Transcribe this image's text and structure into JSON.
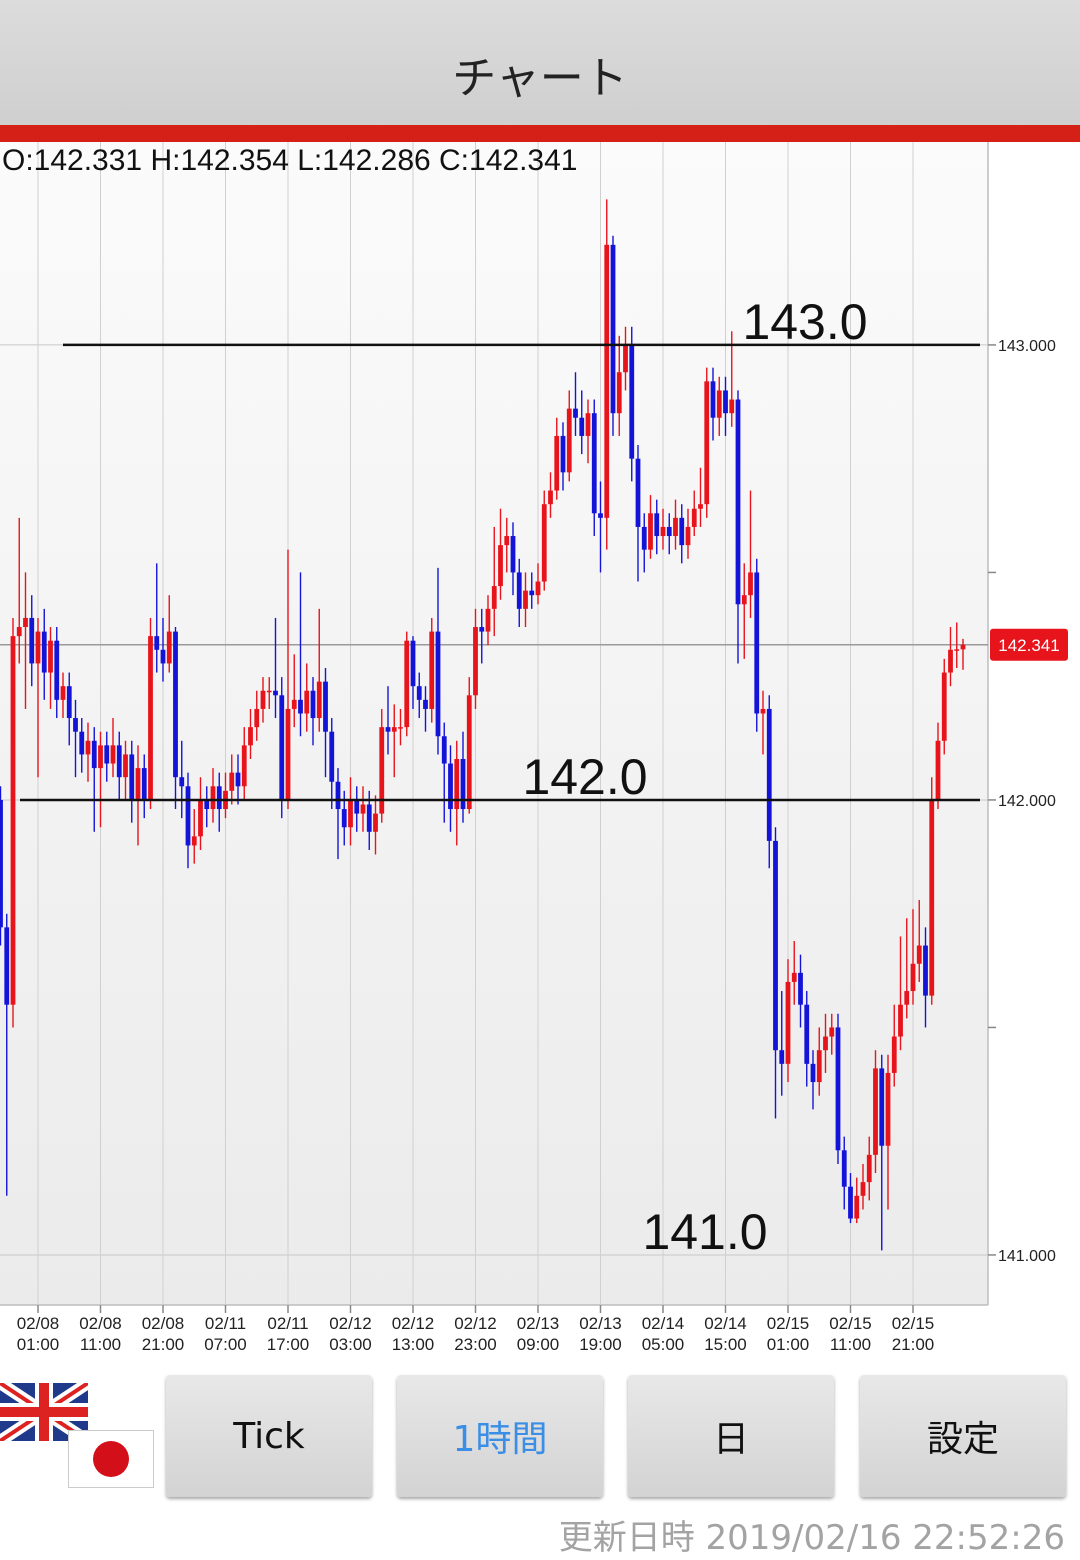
{
  "header": {
    "title": "チャート"
  },
  "ohlc_text": "O:142.331 H:142.354 L:142.286 C:142.341",
  "chart_data": {
    "type": "candlestick",
    "categories": [
      null,
      null,
      null,
      null,
      null,
      null,
      "02/08\n01:00",
      null,
      null,
      null,
      null,
      null,
      null,
      null,
      null,
      null,
      "02/08\n11:00",
      null,
      null,
      null,
      null,
      null,
      null,
      null,
      null,
      null,
      "02/08\n21:00",
      null,
      null,
      null,
      null,
      null,
      null,
      null,
      null,
      null,
      "02/11\n07:00",
      null,
      null,
      null,
      null,
      null,
      null,
      null,
      null,
      null,
      "02/11\n17:00",
      null,
      null,
      null,
      null,
      null,
      null,
      null,
      null,
      null,
      "02/12\n03:00",
      null,
      null,
      null,
      null,
      null,
      null,
      null,
      null,
      null,
      "02/12\n13:00",
      null,
      null,
      null,
      null,
      null,
      null,
      null,
      null,
      null,
      "02/12\n23:00",
      null,
      null,
      null,
      null,
      null,
      null,
      null,
      null,
      null,
      "02/13\n09:00",
      null,
      null,
      null,
      null,
      null,
      null,
      null,
      null,
      null,
      "02/13\n19:00",
      null,
      null,
      null,
      null,
      null,
      null,
      null,
      null,
      null,
      "02/14\n05:00",
      null,
      null,
      null,
      null,
      null,
      null,
      null,
      null,
      null,
      "02/14\n15:00",
      null,
      null,
      null,
      null,
      null,
      null,
      null,
      null,
      null,
      "02/15\n01:00",
      null,
      null,
      null,
      null,
      null,
      null,
      null,
      null,
      null,
      "02/15\n11:00",
      null,
      null,
      null,
      null,
      null,
      null,
      null,
      null,
      null,
      "02/15\n21:00",
      null,
      null,
      null,
      null,
      null,
      null,
      null,
      null
    ],
    "open": [
      142.0,
      141.72,
      141.55,
      142.36,
      142.38,
      142.4,
      142.3,
      142.37,
      142.28,
      142.35,
      142.22,
      142.25,
      142.18,
      142.15,
      142.1,
      142.13,
      142.07,
      142.12,
      142.08,
      142.12,
      142.05,
      142.1,
      142.0,
      142.07,
      142.0,
      142.36,
      142.33,
      142.3,
      142.37,
      142.05,
      142.03,
      141.9,
      141.92,
      142.0,
      141.98,
      142.03,
      141.98,
      142.02,
      142.06,
      142.03,
      142.12,
      142.16,
      142.2,
      142.24,
      142.24,
      142.23,
      142.0,
      142.2,
      142.22,
      142.19,
      142.24,
      142.18,
      142.26,
      142.15,
      142.04,
      141.98,
      141.94,
      142.0,
      141.97,
      141.99,
      141.93,
      141.97,
      142.16,
      142.15,
      142.16,
      142.16,
      142.35,
      142.25,
      142.22,
      142.2,
      142.37,
      142.14,
      142.08,
      141.98,
      142.09,
      141.98,
      142.23,
      142.38,
      142.37,
      142.42,
      142.47,
      142.56,
      142.58,
      142.5,
      142.42,
      142.46,
      142.45,
      142.48,
      142.65,
      142.68,
      142.8,
      142.72,
      142.86,
      142.84,
      142.8,
      142.85,
      142.63,
      142.62,
      143.22,
      142.85,
      142.94,
      143.0,
      142.75,
      142.6,
      142.55,
      142.63,
      142.58,
      142.6,
      142.58,
      142.62,
      142.56,
      142.6,
      142.64,
      142.65,
      142.92,
      142.84,
      142.9,
      142.85,
      142.88,
      142.43,
      142.45,
      142.5,
      142.19,
      142.2,
      141.91,
      141.45,
      141.42,
      141.6,
      141.62,
      141.55,
      141.42,
      141.38,
      141.45,
      141.48,
      141.5,
      141.23,
      141.15,
      141.08,
      141.13,
      141.16,
      141.22,
      141.41,
      141.24,
      141.4,
      141.48,
      141.55,
      141.58,
      141.64,
      141.68,
      141.57,
      142.0,
      142.13,
      142.28,
      142.33,
      142.331
    ],
    "high": [
      142.03,
      141.75,
      142.4,
      142.62,
      142.5,
      142.45,
      142.4,
      142.42,
      142.38,
      142.38,
      142.28,
      142.28,
      142.22,
      142.18,
      142.17,
      142.16,
      142.15,
      142.15,
      142.18,
      142.15,
      142.13,
      142.13,
      142.12,
      142.1,
      142.4,
      142.52,
      142.4,
      142.45,
      142.38,
      142.13,
      142.06,
      141.98,
      142.05,
      142.03,
      142.07,
      142.06,
      142.06,
      142.1,
      142.1,
      142.16,
      142.2,
      142.24,
      142.27,
      142.27,
      142.4,
      142.27,
      142.55,
      142.32,
      142.5,
      142.3,
      142.27,
      142.42,
      142.29,
      142.18,
      142.07,
      142.02,
      142.05,
      142.03,
      142.03,
      142.02,
      142.01,
      142.2,
      142.25,
      142.21,
      142.2,
      142.37,
      142.36,
      142.28,
      142.25,
      142.4,
      142.51,
      142.17,
      142.12,
      142.13,
      142.15,
      142.27,
      142.42,
      142.42,
      142.45,
      142.6,
      142.64,
      142.62,
      142.61,
      142.53,
      142.5,
      142.5,
      142.52,
      142.68,
      142.72,
      142.84,
      142.83,
      142.9,
      142.94,
      142.9,
      142.88,
      142.88,
      142.7,
      143.32,
      143.24,
      143.02,
      143.04,
      143.04,
      142.78,
      142.63,
      142.67,
      142.66,
      142.64,
      142.63,
      142.66,
      142.65,
      142.64,
      142.68,
      142.73,
      142.95,
      142.95,
      142.93,
      142.93,
      143.03,
      142.9,
      142.52,
      142.68,
      142.53,
      142.24,
      142.23,
      141.94,
      141.58,
      141.65,
      141.69,
      141.66,
      141.58,
      141.45,
      141.5,
      141.53,
      141.53,
      141.53,
      141.26,
      141.18,
      141.17,
      141.2,
      141.26,
      141.45,
      141.44,
      141.44,
      141.55,
      141.7,
      141.74,
      141.76,
      141.78,
      141.72,
      142.05,
      142.17,
      142.31,
      142.38,
      142.39,
      142.354
    ],
    "low": [
      141.68,
      141.13,
      141.5,
      142.3,
      142.2,
      142.25,
      142.05,
      142.22,
      142.2,
      142.18,
      142.18,
      142.12,
      142.05,
      142.06,
      142.04,
      141.93,
      141.94,
      142.04,
      142.05,
      142.0,
      142.0,
      141.95,
      141.9,
      141.96,
      141.98,
      142.28,
      142.26,
      142.28,
      141.98,
      141.96,
      141.85,
      141.86,
      141.89,
      141.94,
      141.95,
      141.93,
      141.96,
      141.99,
      141.99,
      142.0,
      142.09,
      142.13,
      142.17,
      142.2,
      142.18,
      141.96,
      141.98,
      142.16,
      142.14,
      142.15,
      142.12,
      142.15,
      142.05,
      141.98,
      141.87,
      141.9,
      141.9,
      141.93,
      141.93,
      141.89,
      141.88,
      141.95,
      142.1,
      142.05,
      142.12,
      142.14,
      142.2,
      142.18,
      142.15,
      142.17,
      142.1,
      141.95,
      141.93,
      141.9,
      141.95,
      141.97,
      142.2,
      142.3,
      142.34,
      142.36,
      142.44,
      142.5,
      142.45,
      142.38,
      142.38,
      142.42,
      142.43,
      142.46,
      142.62,
      142.66,
      142.68,
      142.7,
      142.8,
      142.76,
      142.74,
      142.58,
      142.5,
      142.55,
      142.8,
      142.8,
      142.9,
      142.7,
      142.48,
      142.5,
      142.53,
      142.54,
      142.55,
      142.54,
      142.55,
      142.52,
      142.53,
      142.58,
      142.6,
      142.62,
      142.79,
      142.8,
      142.8,
      142.82,
      142.3,
      142.31,
      142.4,
      142.15,
      142.1,
      141.85,
      141.3,
      141.35,
      141.38,
      141.55,
      141.5,
      141.37,
      141.32,
      141.35,
      141.4,
      141.44,
      141.2,
      141.1,
      141.07,
      141.07,
      141.1,
      141.12,
      141.18,
      141.01,
      141.1,
      141.37,
      141.45,
      141.52,
      141.55,
      141.6,
      141.5,
      141.55,
      141.98,
      142.1,
      142.25,
      142.29,
      142.286
    ],
    "close": [
      141.72,
      141.55,
      142.36,
      142.38,
      142.4,
      142.3,
      142.37,
      142.28,
      142.35,
      142.22,
      142.25,
      142.18,
      142.15,
      142.1,
      142.13,
      142.07,
      142.12,
      142.08,
      142.12,
      142.05,
      142.1,
      142.0,
      142.07,
      142.0,
      142.36,
      142.33,
      142.3,
      142.37,
      142.05,
      142.03,
      141.9,
      141.92,
      142.0,
      141.98,
      142.03,
      141.98,
      142.02,
      142.06,
      142.03,
      142.12,
      142.16,
      142.2,
      142.24,
      142.24,
      142.23,
      142.0,
      142.2,
      142.22,
      142.19,
      142.24,
      142.18,
      142.26,
      142.15,
      142.04,
      141.98,
      141.94,
      142.0,
      141.97,
      141.99,
      141.93,
      141.97,
      142.16,
      142.15,
      142.16,
      142.16,
      142.35,
      142.25,
      142.22,
      142.2,
      142.37,
      142.14,
      142.08,
      141.98,
      142.09,
      141.98,
      142.23,
      142.38,
      142.37,
      142.42,
      142.47,
      142.56,
      142.58,
      142.5,
      142.42,
      142.46,
      142.45,
      142.48,
      142.65,
      142.68,
      142.8,
      142.72,
      142.86,
      142.84,
      142.8,
      142.85,
      142.63,
      142.62,
      143.22,
      142.85,
      142.94,
      143.0,
      142.75,
      142.6,
      142.55,
      142.63,
      142.58,
      142.6,
      142.58,
      142.62,
      142.56,
      142.6,
      142.64,
      142.65,
      142.92,
      142.84,
      142.9,
      142.85,
      142.88,
      142.43,
      142.45,
      142.5,
      142.19,
      142.2,
      141.91,
      141.45,
      141.42,
      141.6,
      141.62,
      141.55,
      141.42,
      141.38,
      141.45,
      141.48,
      141.5,
      141.23,
      141.15,
      141.08,
      141.13,
      141.16,
      141.22,
      141.41,
      141.24,
      141.4,
      141.48,
      141.55,
      141.58,
      141.64,
      141.68,
      141.57,
      142.0,
      142.13,
      142.28,
      142.33,
      142.331,
      142.341
    ],
    "up_color": "#e8141c",
    "down_color": "#1414d8",
    "ylim": [
      140.89,
      143.446
    ],
    "yticks": [
      {
        "value": 141,
        "label": "141.000"
      },
      {
        "value": 142,
        "label": "142.000"
      },
      {
        "value": 143,
        "label": "143.000"
      }
    ],
    "yminor": [
      141.5,
      142.5
    ],
    "grid": true,
    "price_tag_color": "#e8141c",
    "hlines": [
      {
        "value": 143,
        "label": "143.0",
        "show_line": true
      },
      {
        "value": 142,
        "label": "142.0",
        "show_line": true
      },
      {
        "value": 141,
        "label": "141.0",
        "show_line": false
      }
    ]
  },
  "buttons": [
    {
      "label": "Tick"
    },
    {
      "label": "1時間",
      "selected": true
    },
    {
      "label": "日"
    },
    {
      "label": "設定"
    }
  ],
  "updated": "更新日時 2019/02/16 22:52:26"
}
